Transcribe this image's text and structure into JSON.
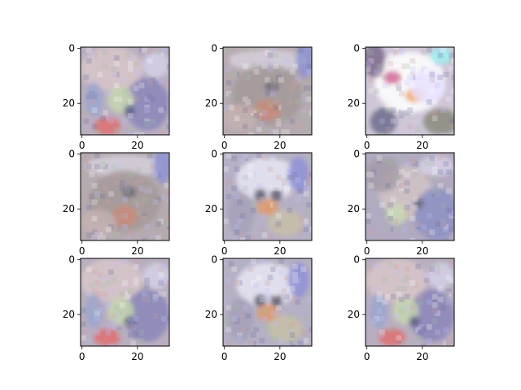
{
  "chart_data": {
    "type": "image-grid",
    "rows": 3,
    "cols": 3,
    "image_size": [
      32,
      32
    ],
    "x_ticks": [
      0,
      20
    ],
    "y_ticks": [
      0,
      20
    ],
    "xlim": [
      -0.5,
      31.5
    ],
    "ylim": [
      31.5,
      -0.5
    ],
    "frame_color": "#000000",
    "panels": [
      {
        "row": 0,
        "col": 0,
        "variant": "a"
      },
      {
        "row": 0,
        "col": 1,
        "variant": "b"
      },
      {
        "row": 0,
        "col": 2,
        "variant": "c"
      },
      {
        "row": 1,
        "col": 0,
        "variant": "b"
      },
      {
        "row": 1,
        "col": 1,
        "variant": "d"
      },
      {
        "row": 1,
        "col": 2,
        "variant": "e"
      },
      {
        "row": 2,
        "col": 0,
        "variant": "a"
      },
      {
        "row": 2,
        "col": 1,
        "variant": "d"
      },
      {
        "row": 2,
        "col": 2,
        "variant": "a"
      }
    ]
  }
}
